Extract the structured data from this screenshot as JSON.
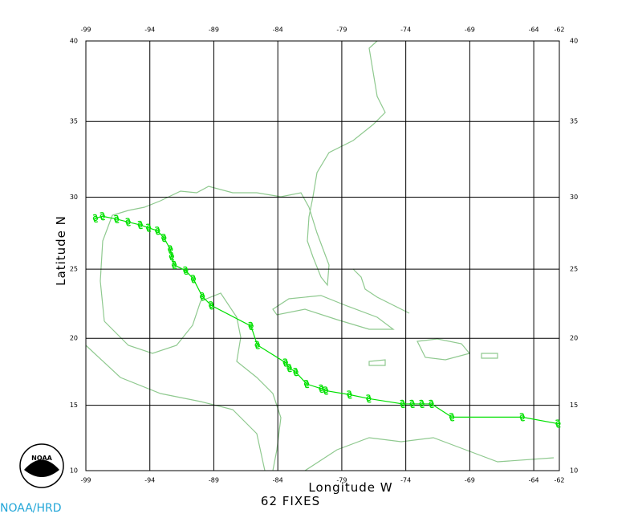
{
  "chart_data": {
    "type": "track",
    "projection": "mercator",
    "xlabel": "Longitude W",
    "ylabel": "Latitude N",
    "annotation": "62 FIXES",
    "credit": "NOAA/HRD",
    "logo_text": "NOAA",
    "xlim": [
      -99,
      -62
    ],
    "ylim": [
      10,
      40
    ],
    "xticks": [
      -99,
      -94,
      -89,
      -84,
      -79,
      -74,
      -69,
      -64,
      -62
    ],
    "yticks": [
      10,
      15,
      20,
      25,
      30,
      35,
      40
    ],
    "grid": true,
    "series": [
      {
        "color": "#00e000",
        "x": [
          -62.1,
          -64.9,
          -70.4,
          -72.0,
          -72.75,
          -73.5,
          -74.25,
          -76.9,
          -78.4,
          -80.25,
          -80.6,
          -81.75,
          -82.6,
          -83.1,
          -83.4,
          -85.6,
          -86.1,
          -89.2,
          -89.9,
          -90.6,
          -91.2,
          -92.1,
          -92.3,
          -92.4,
          -92.9,
          -93.4,
          -94.1,
          -94.75,
          -95.7,
          -96.6,
          -97.7,
          -98.25
        ],
        "values": [
          13.6,
          14.1,
          14.1,
          15.1,
          15.1,
          15.1,
          15.1,
          15.5,
          15.8,
          16.1,
          16.25,
          16.6,
          17.5,
          17.8,
          18.2,
          19.5,
          20.9,
          22.4,
          23.05,
          24.3,
          24.9,
          25.3,
          25.9,
          26.4,
          27.2,
          27.7,
          27.9,
          28.1,
          28.3,
          28.5,
          28.7,
          28.55
        ]
      }
    ]
  }
}
